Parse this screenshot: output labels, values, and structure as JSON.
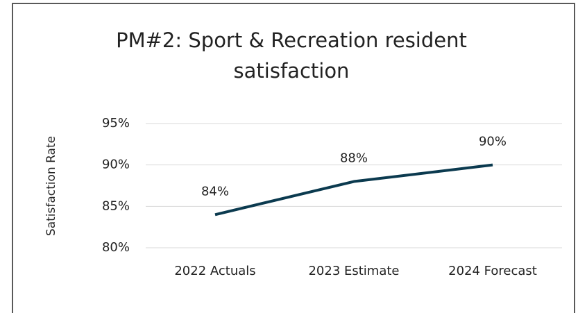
{
  "chart_data": {
    "type": "line",
    "title": "PM#2: Sport & Recreation resident satisfaction",
    "y_label": "Satisfaction Rate",
    "categories": [
      "2022 Actuals",
      "2023 Estimate",
      "2024 Forecast"
    ],
    "series": [
      {
        "name": "Satisfaction Rate",
        "color": "#0b3a4f",
        "values": [
          84,
          88,
          90
        ],
        "value_labels": [
          "84%",
          "88%",
          "90%"
        ]
      }
    ],
    "ylim": [
      80,
      95
    ],
    "yticks": [
      {
        "value": 80,
        "label": "80%"
      },
      {
        "value": 85,
        "label": "85%"
      },
      {
        "value": 90,
        "label": "90%"
      },
      {
        "value": 95,
        "label": "95%"
      }
    ],
    "grid": true
  }
}
